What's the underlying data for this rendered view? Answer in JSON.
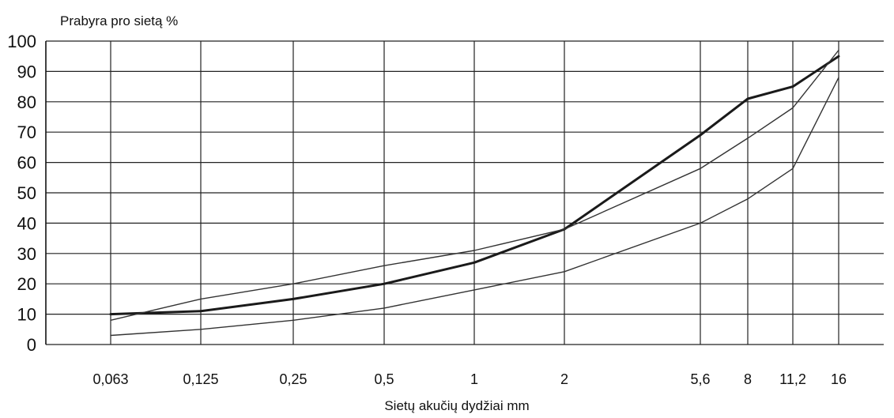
{
  "chart_data": {
    "type": "line",
    "title": "",
    "ylabel": "Prabyra pro sietą %",
    "xlabel": "Sietų akučių dydžiai mm",
    "ylim": [
      0,
      100
    ],
    "yticks": [
      "0",
      "10",
      "20",
      "30",
      "40",
      "50",
      "60",
      "70",
      "80",
      "90",
      "100"
    ],
    "xticks": [
      "0,063",
      "0,125",
      "0,25",
      "0,5",
      "1",
      "2",
      "5,6",
      "8",
      "11,2",
      "16"
    ],
    "grid": true,
    "legend": "none",
    "series": [
      {
        "style": "thick",
        "color": "#1a1a1a",
        "x": [
          0.063,
          0.125,
          0.25,
          0.5,
          1,
          2,
          5.6,
          8,
          11.2,
          16
        ],
        "y": [
          10,
          11,
          15,
          20,
          27,
          38,
          69,
          81,
          85,
          95
        ]
      },
      {
        "style": "thin",
        "color": "#333333",
        "x": [
          0.063,
          0.125,
          0.25,
          0.5,
          1,
          2,
          5.6,
          8,
          11.2,
          16
        ],
        "y": [
          8,
          15,
          20,
          26,
          31,
          38,
          58,
          68,
          78,
          97
        ]
      },
      {
        "style": "thin",
        "color": "#333333",
        "x": [
          0.063,
          0.125,
          0.25,
          0.5,
          1,
          2,
          5.6,
          8,
          11.2,
          16
        ],
        "y": [
          3,
          5,
          8,
          12,
          18,
          24,
          40,
          48,
          58,
          88
        ]
      }
    ]
  }
}
